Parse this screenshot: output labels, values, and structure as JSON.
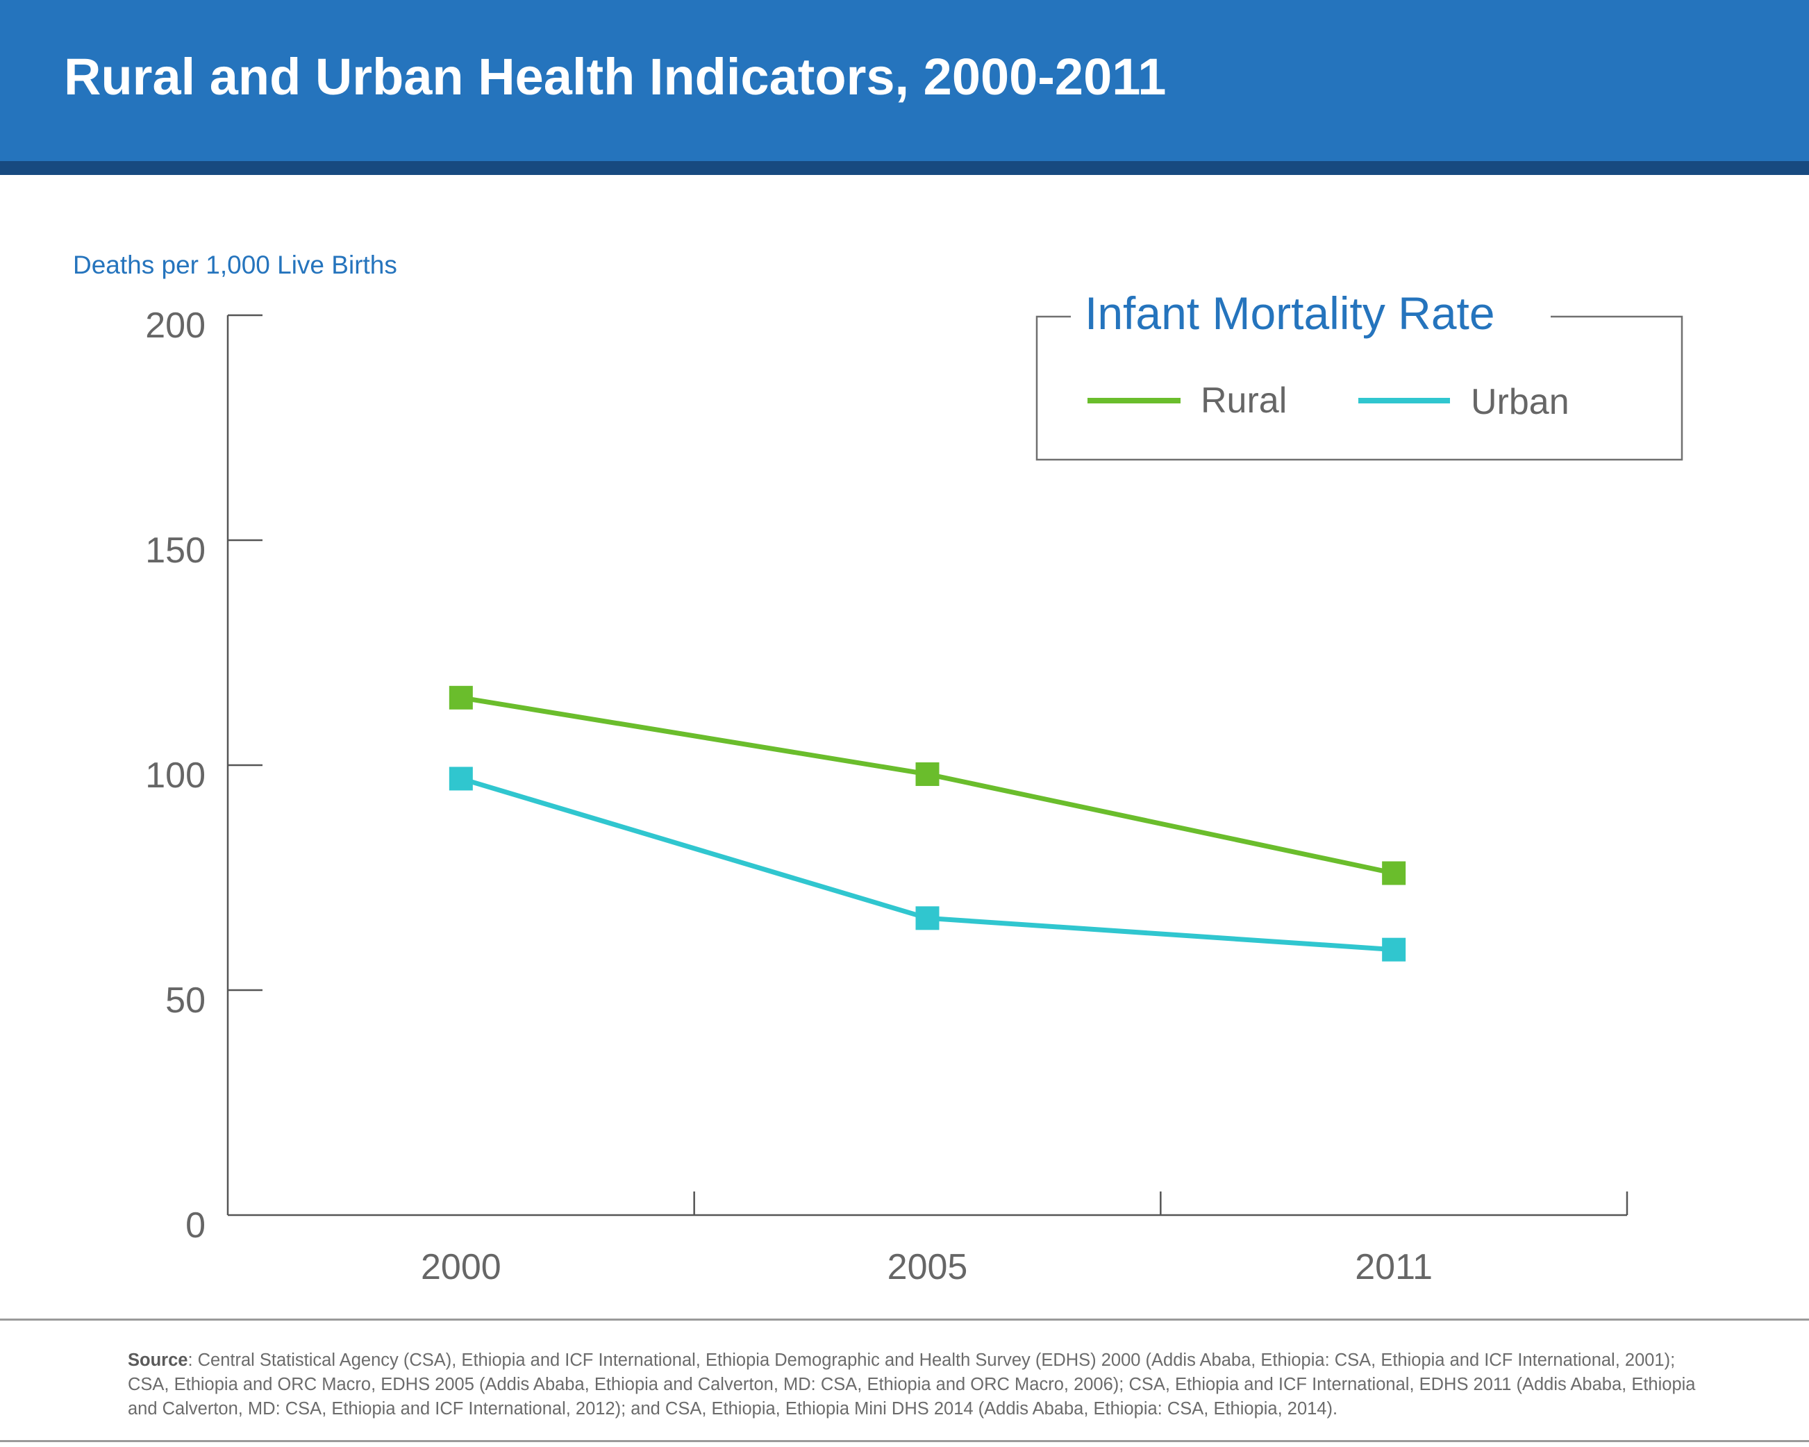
{
  "header": {
    "title": "Rural and Urban Health Indicators, 2000-2011"
  },
  "colors": {
    "header_bg": "#2574bd",
    "header_stripe": "#174a80",
    "rural": "#6abd2c",
    "urban": "#30c6cf",
    "accent_text": "#2574bd",
    "axis": "#555555"
  },
  "chart_data": {
    "type": "line",
    "title": "Infant Mortality Rate",
    "ylabel": "Deaths per 1,000 Live Births",
    "xlabel": "",
    "categories": [
      "2000",
      "2005",
      "2011"
    ],
    "ylim": [
      0,
      200
    ],
    "yticks": [
      "0",
      "50",
      "100",
      "150",
      "200"
    ],
    "series": [
      {
        "name": "Rural",
        "values": [
          115,
          98,
          76
        ]
      },
      {
        "name": "Urban",
        "values": [
          97,
          66,
          59
        ]
      }
    ],
    "legend_position": "top-right",
    "grid": false
  },
  "source": {
    "label": "Source",
    "text": ": Central Statistical Agency (CSA), Ethiopia and ICF International, Ethiopia Demographic and Health Survey (EDHS) 2000 (Addis Ababa, Ethiopia: CSA, Ethiopia and ICF International, 2001); CSA, Ethiopia and ORC Macro, EDHS 2005 (Addis Ababa, Ethiopia and Calverton, MD: CSA, Ethiopia and ORC Macro, 2006); CSA, Ethiopia and ICF International, EDHS 2011 (Addis Ababa, Ethiopia and Calverton, MD: CSA, Ethiopia and ICF International, 2012); and CSA, Ethiopia, Ethiopia Mini DHS 2014 (Addis Ababa, Ethiopia: CSA, Ethiopia, 2014)."
  }
}
